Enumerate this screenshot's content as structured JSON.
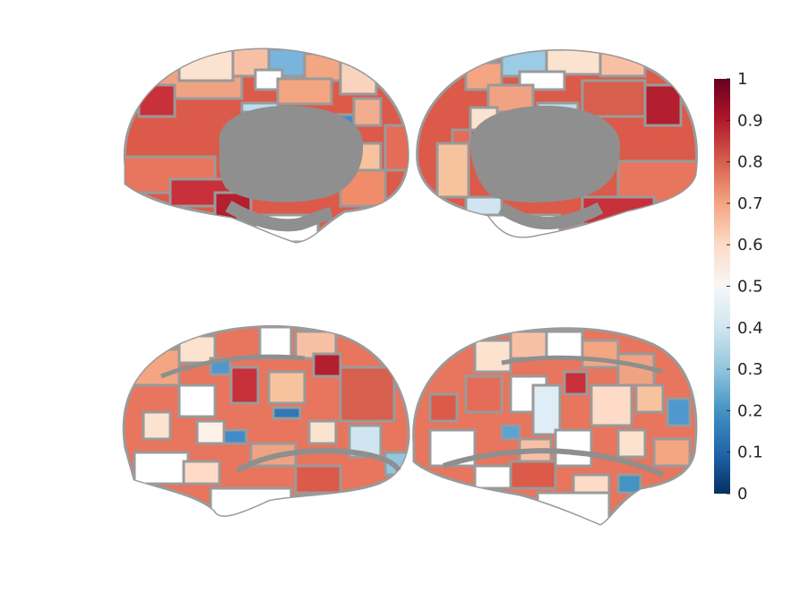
{
  "figure": {
    "views": [
      {
        "name": "left-medial",
        "gray_fill": "#8f8f8f"
      },
      {
        "name": "right-medial",
        "gray_fill": "#8f8f8f"
      },
      {
        "name": "left-lateral",
        "gray_fill": "#8f8f8f"
      },
      {
        "name": "right-lateral",
        "gray_fill": "#8f8f8f"
      }
    ],
    "parcel_outline_color": "#9a9a9a"
  },
  "colorbar": {
    "min": 0,
    "max": 1,
    "ticks": [
      "0",
      "0.1",
      "0.2",
      "0.3",
      "0.4",
      "0.5",
      "0.6",
      "0.7",
      "0.8",
      "0.9",
      "1"
    ],
    "colormap": [
      "#053061",
      "#2166ac",
      "#4393c3",
      "#92c5de",
      "#d1e5f0",
      "#f7f7f7",
      "#fddbc7",
      "#f4a582",
      "#d6604d",
      "#b2182b",
      "#67001f"
    ]
  }
}
